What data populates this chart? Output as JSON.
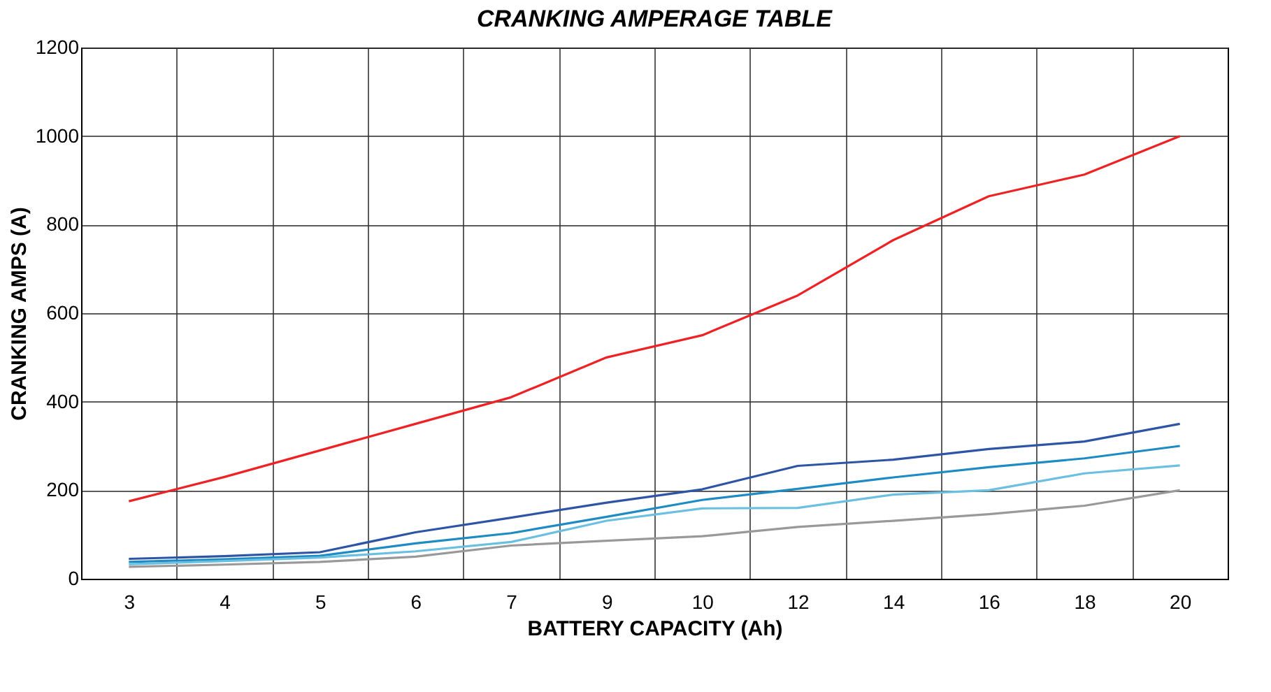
{
  "chart_data": {
    "type": "line",
    "title": "CRANKING AMPERAGE TABLE",
    "xlabel": "BATTERY CAPACITY (Ah)",
    "ylabel": "CRANKING AMPS (A)",
    "categories": [
      "3",
      "4",
      "5",
      "6",
      "7",
      "9",
      "10",
      "12",
      "14",
      "16",
      "18",
      "20"
    ],
    "ylim": [
      0,
      1200
    ],
    "yticks": [
      0,
      200,
      400,
      600,
      800,
      1000,
      1200
    ],
    "grid": true,
    "legend": false,
    "marker": "none",
    "line_style": "solid",
    "series": [
      {
        "color": "#ee2224",
        "values": [
          175,
          230,
          290,
          350,
          410,
          500,
          550,
          640,
          765,
          864,
          913,
          1000
        ]
      },
      {
        "color": "#2e55a5",
        "values": [
          45,
          51,
          60,
          105,
          138,
          172,
          202,
          255,
          269,
          293,
          310,
          350
        ]
      },
      {
        "color": "#1e8bc3",
        "values": [
          38,
          44,
          52,
          80,
          103,
          140,
          178,
          203,
          229,
          252,
          272,
          300
        ]
      },
      {
        "color": "#6bbfe0",
        "values": [
          33,
          40,
          48,
          62,
          83,
          131,
          159,
          160,
          190,
          200,
          238,
          256
        ]
      },
      {
        "color": "#999999",
        "values": [
          27,
          32,
          38,
          50,
          75,
          86,
          96,
          117,
          131,
          146,
          165,
          200
        ]
      }
    ]
  }
}
